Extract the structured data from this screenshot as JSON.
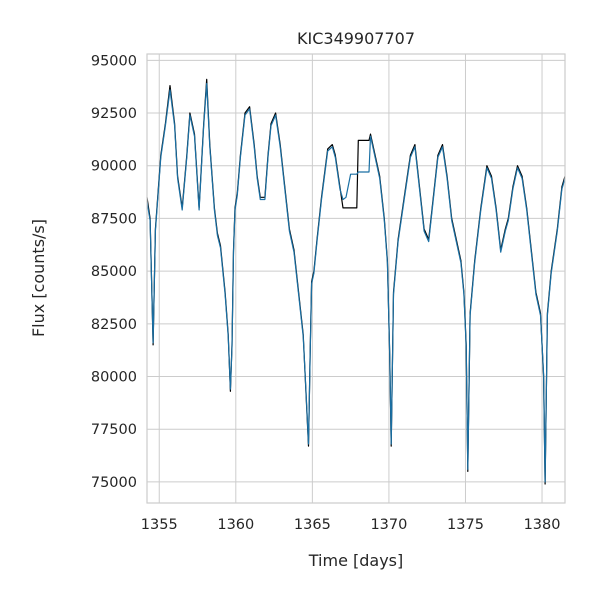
{
  "chart_data": {
    "type": "line",
    "title": "KIC349907707",
    "xlabel": "Time [days]",
    "ylabel": "Flux [counts/s]",
    "xlim": [
      1354.2,
      1381.5
    ],
    "ylim": [
      74000,
      95300
    ],
    "xticks": [
      1355,
      1360,
      1365,
      1370,
      1375,
      1380
    ],
    "yticks": [
      75000,
      77500,
      80000,
      82500,
      85000,
      87500,
      90000,
      92500,
      95000
    ],
    "grid": true,
    "legend": "none",
    "series": [
      {
        "color": "#000000",
        "x": [
          1354.2,
          1354.4,
          1354.6,
          1354.75,
          1354.9,
          1355.1,
          1355.4,
          1355.7,
          1356.0,
          1356.2,
          1356.5,
          1356.8,
          1357.0,
          1357.3,
          1357.6,
          1357.9,
          1358.1,
          1358.3,
          1358.6,
          1358.8,
          1359.0,
          1359.3,
          1359.5,
          1359.65,
          1359.75,
          1359.85,
          1359.95,
          1360.1,
          1360.3,
          1360.6,
          1360.9,
          1361.2,
          1361.4,
          1361.6,
          1361.9,
          1362.1,
          1362.3,
          1362.6,
          1362.9,
          1363.2,
          1363.5,
          1363.8,
          1364.1,
          1364.4,
          1364.6,
          1364.75,
          1364.85,
          1364.95,
          1365.1,
          1365.3,
          1365.6,
          1366.0,
          1366.3,
          1366.5,
          1366.8,
          1367.0,
          1367.2,
          1367.5,
          1367.9,
          1368.0,
          1368.7,
          1368.8,
          1369.1,
          1369.4,
          1369.7,
          1369.9,
          1370.05,
          1370.15,
          1370.3,
          1370.6,
          1371.0,
          1371.4,
          1371.7,
          1372.0,
          1372.3,
          1372.6,
          1372.9,
          1373.2,
          1373.5,
          1373.8,
          1374.1,
          1374.4,
          1374.7,
          1374.9,
          1375.05,
          1375.15,
          1375.3,
          1375.6,
          1376.0,
          1376.4,
          1376.7,
          1377.0,
          1377.3,
          1377.6,
          1377.8,
          1378.1,
          1378.4,
          1378.7,
          1379.0,
          1379.3,
          1379.6,
          1379.9,
          1380.1,
          1380.2,
          1380.35,
          1380.6,
          1381.0,
          1381.3,
          1381.5
        ],
        "y": [
          88500,
          87500,
          81500,
          87000,
          88500,
          90500,
          92000,
          93800,
          92000,
          89500,
          88000,
          90500,
          92500,
          91500,
          88000,
          92000,
          94100,
          91000,
          88000,
          86800,
          86200,
          84000,
          82000,
          79300,
          81500,
          86000,
          88000,
          88700,
          90500,
          92500,
          92800,
          91000,
          89500,
          88500,
          88500,
          90500,
          92000,
          92500,
          91000,
          89000,
          87000,
          86000,
          84000,
          82000,
          79000,
          76700,
          81000,
          84500,
          85000,
          86500,
          88500,
          90800,
          91000,
          90500,
          89000,
          88000,
          88000,
          88000,
          88000,
          91200,
          91200,
          91500,
          90500,
          89500,
          87500,
          85500,
          81000,
          76700,
          84000,
          86500,
          88500,
          90500,
          91000,
          89000,
          87000,
          86500,
          88500,
          90500,
          91000,
          89500,
          87500,
          86500,
          85500,
          84000,
          81500,
          75500,
          83000,
          85500,
          88000,
          90000,
          89500,
          88000,
          86000,
          87000,
          87500,
          89000,
          90000,
          89500,
          88000,
          86000,
          84000,
          83000,
          80000,
          74900,
          83000,
          85000,
          87000,
          89000,
          89500
        ]
      },
      {
        "color": "#1a6fa3",
        "x": [
          1354.2,
          1354.4,
          1354.6,
          1354.75,
          1354.9,
          1355.1,
          1355.4,
          1355.7,
          1356.0,
          1356.2,
          1356.5,
          1356.8,
          1357.0,
          1357.3,
          1357.6,
          1357.9,
          1358.1,
          1358.3,
          1358.6,
          1358.8,
          1359.0,
          1359.3,
          1359.5,
          1359.65,
          1359.75,
          1359.85,
          1359.95,
          1360.1,
          1360.3,
          1360.6,
          1360.9,
          1361.2,
          1361.4,
          1361.6,
          1361.9,
          1362.1,
          1362.3,
          1362.6,
          1362.9,
          1363.2,
          1363.5,
          1363.8,
          1364.1,
          1364.4,
          1364.6,
          1364.75,
          1364.85,
          1364.95,
          1365.1,
          1365.3,
          1365.6,
          1366.0,
          1366.3,
          1366.5,
          1366.8,
          1367.0,
          1367.2,
          1367.5,
          1367.9,
          1368.0,
          1368.7,
          1368.8,
          1369.1,
          1369.4,
          1369.7,
          1369.9,
          1370.05,
          1370.15,
          1370.3,
          1370.6,
          1371.0,
          1371.4,
          1371.7,
          1372.0,
          1372.3,
          1372.6,
          1372.9,
          1373.2,
          1373.5,
          1373.8,
          1374.1,
          1374.4,
          1374.7,
          1374.9,
          1375.05,
          1375.15,
          1375.3,
          1375.6,
          1376.0,
          1376.4,
          1376.7,
          1377.0,
          1377.3,
          1377.6,
          1377.8,
          1378.1,
          1378.4,
          1378.7,
          1379.0,
          1379.3,
          1379.6,
          1379.9,
          1380.1,
          1380.2,
          1380.35,
          1380.6,
          1381.0,
          1381.3,
          1381.5
        ],
        "y": [
          88300,
          87400,
          81600,
          86900,
          88400,
          90400,
          91900,
          93600,
          91900,
          89400,
          87900,
          90400,
          92400,
          91400,
          87900,
          91900,
          93900,
          90900,
          87900,
          86700,
          86100,
          83900,
          81900,
          79400,
          81400,
          85900,
          87900,
          88600,
          90400,
          92400,
          92700,
          90900,
          89400,
          88400,
          88400,
          90400,
          91900,
          92400,
          90900,
          88900,
          86900,
          85900,
          83900,
          81900,
          79100,
          76800,
          80900,
          84400,
          84900,
          86400,
          88400,
          90700,
          90900,
          90400,
          88900,
          88400,
          88500,
          89600,
          89600,
          89700,
          89700,
          91400,
          90400,
          89400,
          87400,
          85400,
          81100,
          76800,
          83900,
          86400,
          88400,
          90400,
          90900,
          88900,
          86900,
          86400,
          88400,
          90400,
          90900,
          89400,
          87400,
          86400,
          85400,
          83900,
          81400,
          75600,
          82900,
          85400,
          87900,
          89900,
          89400,
          87900,
          85900,
          86900,
          87400,
          88900,
          89900,
          89400,
          87900,
          85900,
          83900,
          82900,
          80100,
          75000,
          82900,
          84900,
          86900,
          88900,
          89400
        ]
      }
    ]
  }
}
